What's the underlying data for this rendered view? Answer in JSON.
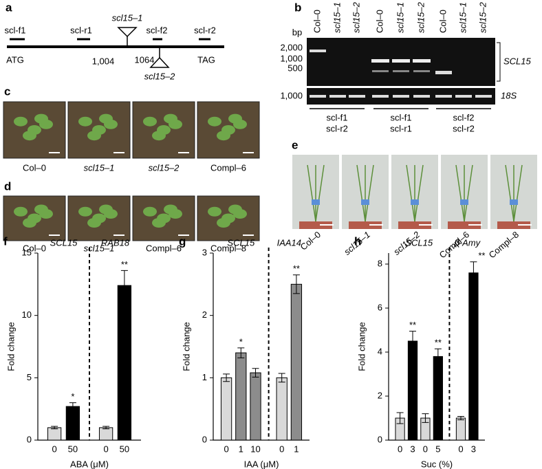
{
  "panel_a": {
    "letter": "a",
    "primers": [
      "scl-f1",
      "scl-r1",
      "scl-f2",
      "scl-r2"
    ],
    "start": "ATG",
    "stop": "TAG",
    "insert_1": {
      "name": "scl15–1",
      "position": "1,004"
    },
    "insert_2": {
      "name": "scl15–2",
      "position": "1064"
    }
  },
  "panel_b": {
    "letter": "b",
    "unit": "bp",
    "lanes": [
      "Col–0",
      "scl15–1",
      "scl15–2",
      "Col–0",
      "scl15–1",
      "scl15–2",
      "Col–0",
      "scl15–1",
      "scl15–2"
    ],
    "ladder": [
      "2,000",
      "1,000",
      "500"
    ],
    "ladder_18s": "1,000",
    "gene": "SCL15",
    "control": "18S",
    "primer_pairs": [
      [
        "scl-f1",
        "scl-r2"
      ],
      [
        "scl-f1",
        "scl-r1"
      ],
      [
        "scl-f2",
        "scl-r2"
      ]
    ]
  },
  "panel_c": {
    "letter": "c",
    "labels": [
      "Col–0",
      "scl15–1",
      "scl15–2",
      "Compl–6"
    ]
  },
  "panel_d": {
    "letter": "d",
    "labels": [
      "Col–0",
      "scl15–1",
      "Compl–6",
      "Compl–8"
    ]
  },
  "panel_e": {
    "letter": "e",
    "labels": [
      "Col–0",
      "scl15–1",
      "scl15–2",
      "Compl–6",
      "Compl–8"
    ]
  },
  "chart_data": [
    {
      "type": "bar",
      "letter": "f",
      "ylabel": "Fold change",
      "xlabel": "ABA (μM)",
      "groups": [
        {
          "label": "SCL15",
          "count": 2
        },
        {
          "label": "RAB18",
          "count": 2
        }
      ],
      "categories": [
        "0",
        "50",
        "0",
        "50"
      ],
      "values": [
        1.0,
        2.7,
        1.0,
        12.4
      ],
      "errors": [
        0.1,
        0.3,
        0.1,
        1.2
      ],
      "annotations": [
        null,
        "*",
        null,
        "**"
      ],
      "colors": [
        "#d9d9d9",
        "#000000",
        "#d9d9d9",
        "#000000"
      ],
      "ylim": [
        0,
        15
      ],
      "yticks": [
        0,
        5,
        10,
        15
      ]
    },
    {
      "type": "bar",
      "letter": "g",
      "ylabel": "Fold change",
      "xlabel": "IAA (μM)",
      "groups": [
        {
          "label": "SCL15",
          "count": 3
        },
        {
          "label": "IAA14",
          "count": 2
        }
      ],
      "categories": [
        "0",
        "1",
        "10",
        "0",
        "1"
      ],
      "values": [
        1.0,
        1.4,
        1.08,
        1.0,
        2.5
      ],
      "errors": [
        0.06,
        0.08,
        0.07,
        0.07,
        0.15
      ],
      "annotations": [
        null,
        "*",
        null,
        null,
        "**"
      ],
      "colors": [
        "#d9d9d9",
        "#8c8c8c",
        "#8c8c8c",
        "#d9d9d9",
        "#8c8c8c"
      ],
      "ylim": [
        0,
        3
      ],
      "yticks": [
        0,
        1,
        2,
        3
      ]
    },
    {
      "type": "bar",
      "letter": "h",
      "ylabel": "Fold change",
      "xlabel": "Suc (%)",
      "groups": [
        {
          "label": "SCL15",
          "count": 4
        },
        {
          "label": "β-Amy",
          "count": 2
        }
      ],
      "categories": [
        "0",
        "3",
        "0",
        "5",
        "0",
        "3"
      ],
      "values": [
        1.0,
        4.5,
        1.0,
        3.8,
        1.0,
        7.6
      ],
      "errors": [
        0.25,
        0.45,
        0.2,
        0.35,
        0.08,
        0.5
      ],
      "annotations": [
        null,
        "**",
        null,
        "**",
        null,
        "**"
      ],
      "colors": [
        "#d9d9d9",
        "#000000",
        "#d9d9d9",
        "#000000",
        "#d9d9d9",
        "#000000"
      ],
      "ylim": [
        0,
        8.5
      ],
      "yticks": [
        0,
        2,
        4,
        6,
        8
      ]
    }
  ]
}
